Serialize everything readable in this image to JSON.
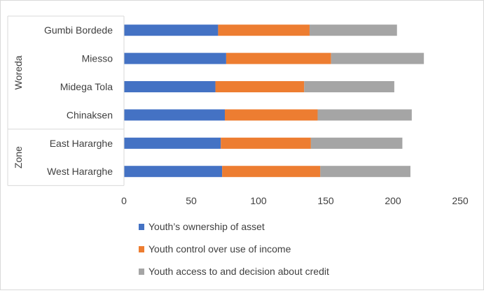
{
  "chart_data": {
    "type": "bar",
    "orientation": "horizontal",
    "stacked": true,
    "title": "",
    "xlabel": "",
    "ylabel": "",
    "xlim": [
      0,
      250
    ],
    "xticks": [
      0,
      50,
      100,
      150,
      200,
      250
    ],
    "grid": false,
    "legend_position": "bottom",
    "groups": [
      {
        "name": "Woreda",
        "categories": [
          "Gumbi Bordede",
          "Miesso",
          "Midega Tola",
          "Chinaksen"
        ]
      },
      {
        "name": "Zone",
        "categories": [
          "East Hararghe",
          "West Hararghe"
        ]
      }
    ],
    "categories": [
      "Gumbi Bordede",
      "Miesso",
      "Midega Tola",
      "Chinaksen",
      "East Hararghe",
      "West Hararghe"
    ],
    "series": [
      {
        "name": "Youth’s ownership of asset",
        "color": "#4472c4",
        "values": [
          70,
          76,
          68,
          75,
          72,
          73
        ]
      },
      {
        "name": "Youth control over use of income",
        "color": "#ed7d31",
        "values": [
          68,
          78,
          66,
          69,
          67,
          73
        ]
      },
      {
        "name": "Youth access to and decision about credit",
        "color": "#a5a5a5",
        "values": [
          65,
          69,
          67,
          70,
          68,
          67
        ]
      }
    ]
  }
}
